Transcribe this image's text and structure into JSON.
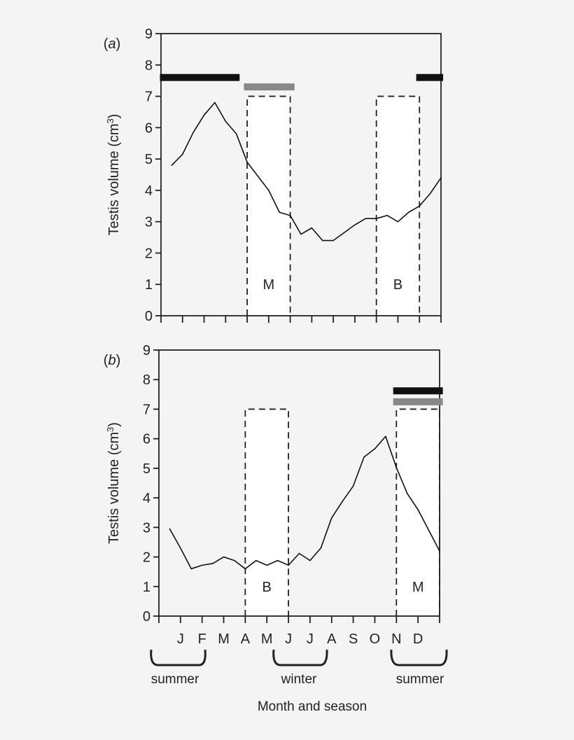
{
  "chart_data": [
    {
      "type": "line",
      "panel_label": "a",
      "ylabel": "Testis volume (cm",
      "ylabel_sup": "3",
      "ylabel_close": ")",
      "ylim": [
        0,
        9
      ],
      "yticks": [
        0,
        1,
        2,
        3,
        4,
        5,
        6,
        7,
        8,
        9
      ],
      "xlim": [
        0,
        13
      ],
      "xtick_count": 14,
      "series": [
        {
          "x": [
            0.5,
            1,
            1.5,
            2,
            2.5,
            3,
            3.5,
            4,
            4.5,
            5,
            5.5,
            6,
            6.5,
            7,
            7.5,
            8,
            8.5,
            9,
            9.5,
            10,
            10.5,
            11,
            11.5,
            12,
            12.5,
            13
          ],
          "y": [
            4.8,
            5.15,
            5.85,
            6.4,
            6.8,
            6.2,
            5.8,
            4.9,
            4.45,
            4.0,
            3.3,
            3.2,
            2.6,
            2.8,
            2.4,
            2.4,
            2.65,
            2.9,
            3.1,
            3.1,
            3.2,
            3.0,
            3.3,
            3.5,
            3.9,
            4.4
          ]
        }
      ],
      "bars": [
        {
          "x": [
            -0.05,
            3.65
          ],
          "y": 7.6,
          "color": "#111111"
        },
        {
          "x": [
            3.85,
            6.2
          ],
          "y": 7.3,
          "color": "#888888"
        },
        {
          "x": [
            11.85,
            13.1
          ],
          "y": 7.6,
          "color": "#111111"
        }
      ],
      "boxes": [
        {
          "x": [
            4,
            6
          ],
          "top": 7,
          "label": "M"
        },
        {
          "x": [
            10,
            12
          ],
          "top": 7,
          "label": "B"
        }
      ]
    },
    {
      "type": "line",
      "panel_label": "b",
      "ylabel": "Testis volume (cm",
      "ylabel_sup": "3",
      "ylabel_close": ")",
      "ylim": [
        0,
        9
      ],
      "yticks": [
        0,
        1,
        2,
        3,
        4,
        5,
        6,
        7,
        8,
        9
      ],
      "xlim": [
        0,
        13
      ],
      "xtick_count": 14,
      "xtick_labels": [
        "",
        "J",
        "F",
        "M",
        "A",
        "M",
        "J",
        "J",
        "A",
        "S",
        "O",
        "N",
        "D",
        ""
      ],
      "series": [
        {
          "x": [
            0.5,
            1,
            1.5,
            2,
            2.5,
            3,
            3.5,
            4,
            4.5,
            5,
            5.5,
            6,
            6.5,
            7,
            7.5,
            8,
            8.5,
            9,
            9.5,
            10,
            10.5,
            11,
            11.5,
            12,
            12.5,
            13
          ],
          "y": [
            2.95,
            2.3,
            1.6,
            1.72,
            1.78,
            2.0,
            1.88,
            1.6,
            1.88,
            1.72,
            1.88,
            1.72,
            2.12,
            1.88,
            2.3,
            3.32,
            3.88,
            4.4,
            5.38,
            5.66,
            6.08,
            5.02,
            4.15,
            3.6,
            2.9,
            2.2
          ]
        }
      ],
      "bars": [
        {
          "x": [
            10.85,
            13.15
          ],
          "y": 7.62,
          "color": "#111111"
        },
        {
          "x": [
            10.85,
            13.15
          ],
          "y": 7.25,
          "color": "#888888"
        }
      ],
      "boxes": [
        {
          "x": [
            4,
            6
          ],
          "top": 7,
          "label": "B"
        },
        {
          "x": [
            11,
            13
          ],
          "top": 7,
          "label": "M"
        }
      ]
    }
  ],
  "seasons": [
    "summer",
    "winter",
    "summer"
  ],
  "xlabel": "Month and season"
}
